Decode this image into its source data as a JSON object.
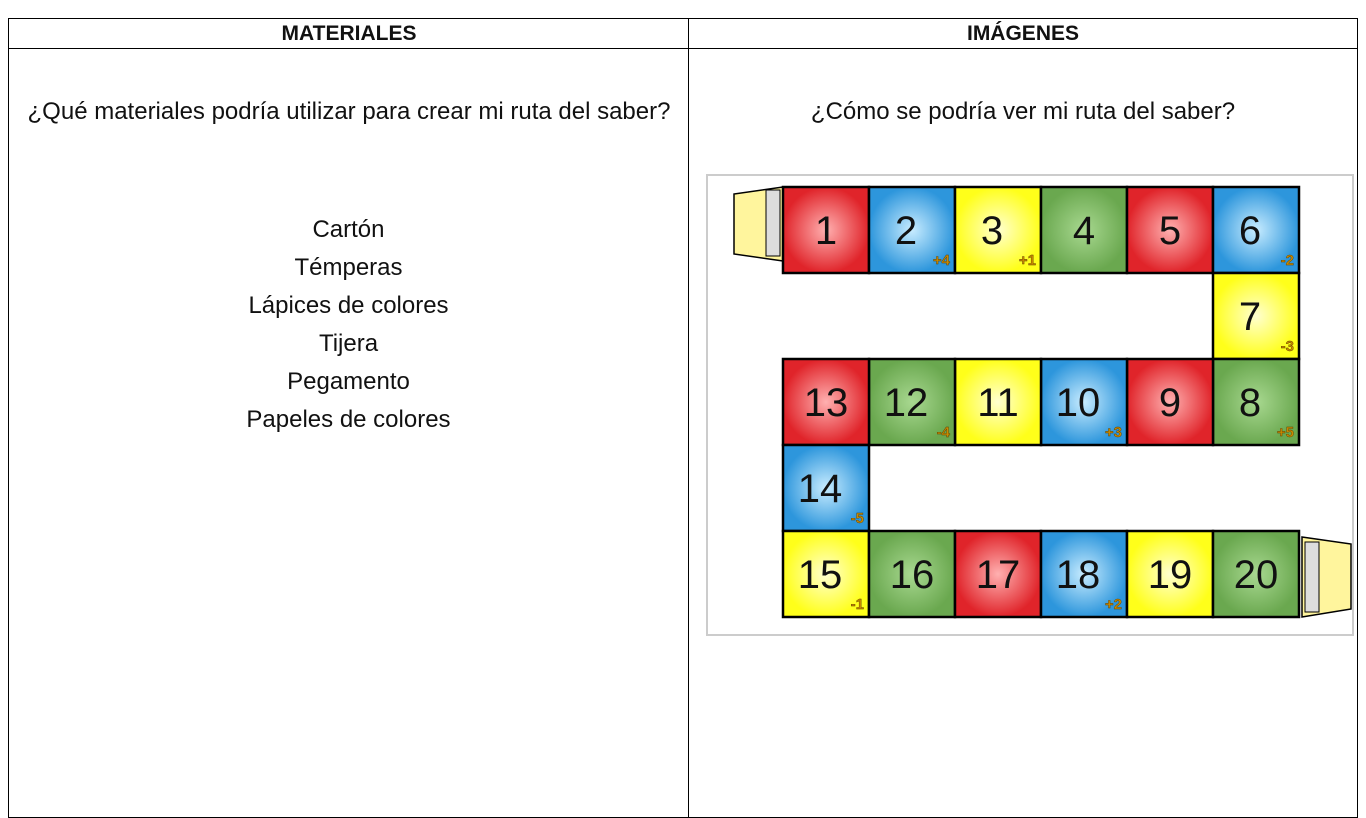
{
  "table": {
    "headers": [
      "MATERIALES",
      "IMÁGENES"
    ],
    "materials": {
      "question": "¿Qué materiales podría utilizar para crear mi ruta del saber?",
      "items": [
        "Cartón",
        "Témperas",
        "Lápices de colores",
        "Tijera",
        "Pegamento",
        "Papeles de colores"
      ]
    },
    "images": {
      "question": "¿Cómo se podría ver mi ruta del saber?",
      "board": {
        "cells": [
          {
            "number": "1"
          },
          {
            "number": "2",
            "bonus": "+4"
          },
          {
            "number": "3",
            "bonus": "+1"
          },
          {
            "number": "4"
          },
          {
            "number": "5"
          },
          {
            "number": "6",
            "bonus": "-2"
          },
          {
            "number": "7",
            "bonus": "-3"
          },
          {
            "number": "8",
            "bonus": "+5"
          },
          {
            "number": "9"
          },
          {
            "number": "10",
            "bonus": "+3"
          },
          {
            "number": "11"
          },
          {
            "number": "12",
            "bonus": "-4"
          },
          {
            "number": "13"
          },
          {
            "number": "14",
            "bonus": "-5"
          },
          {
            "number": "15",
            "bonus": "-1"
          },
          {
            "number": "16"
          },
          {
            "number": "17"
          },
          {
            "number": "18",
            "bonus": "+2"
          },
          {
            "number": "19"
          },
          {
            "number": "20"
          }
        ]
      }
    }
  }
}
